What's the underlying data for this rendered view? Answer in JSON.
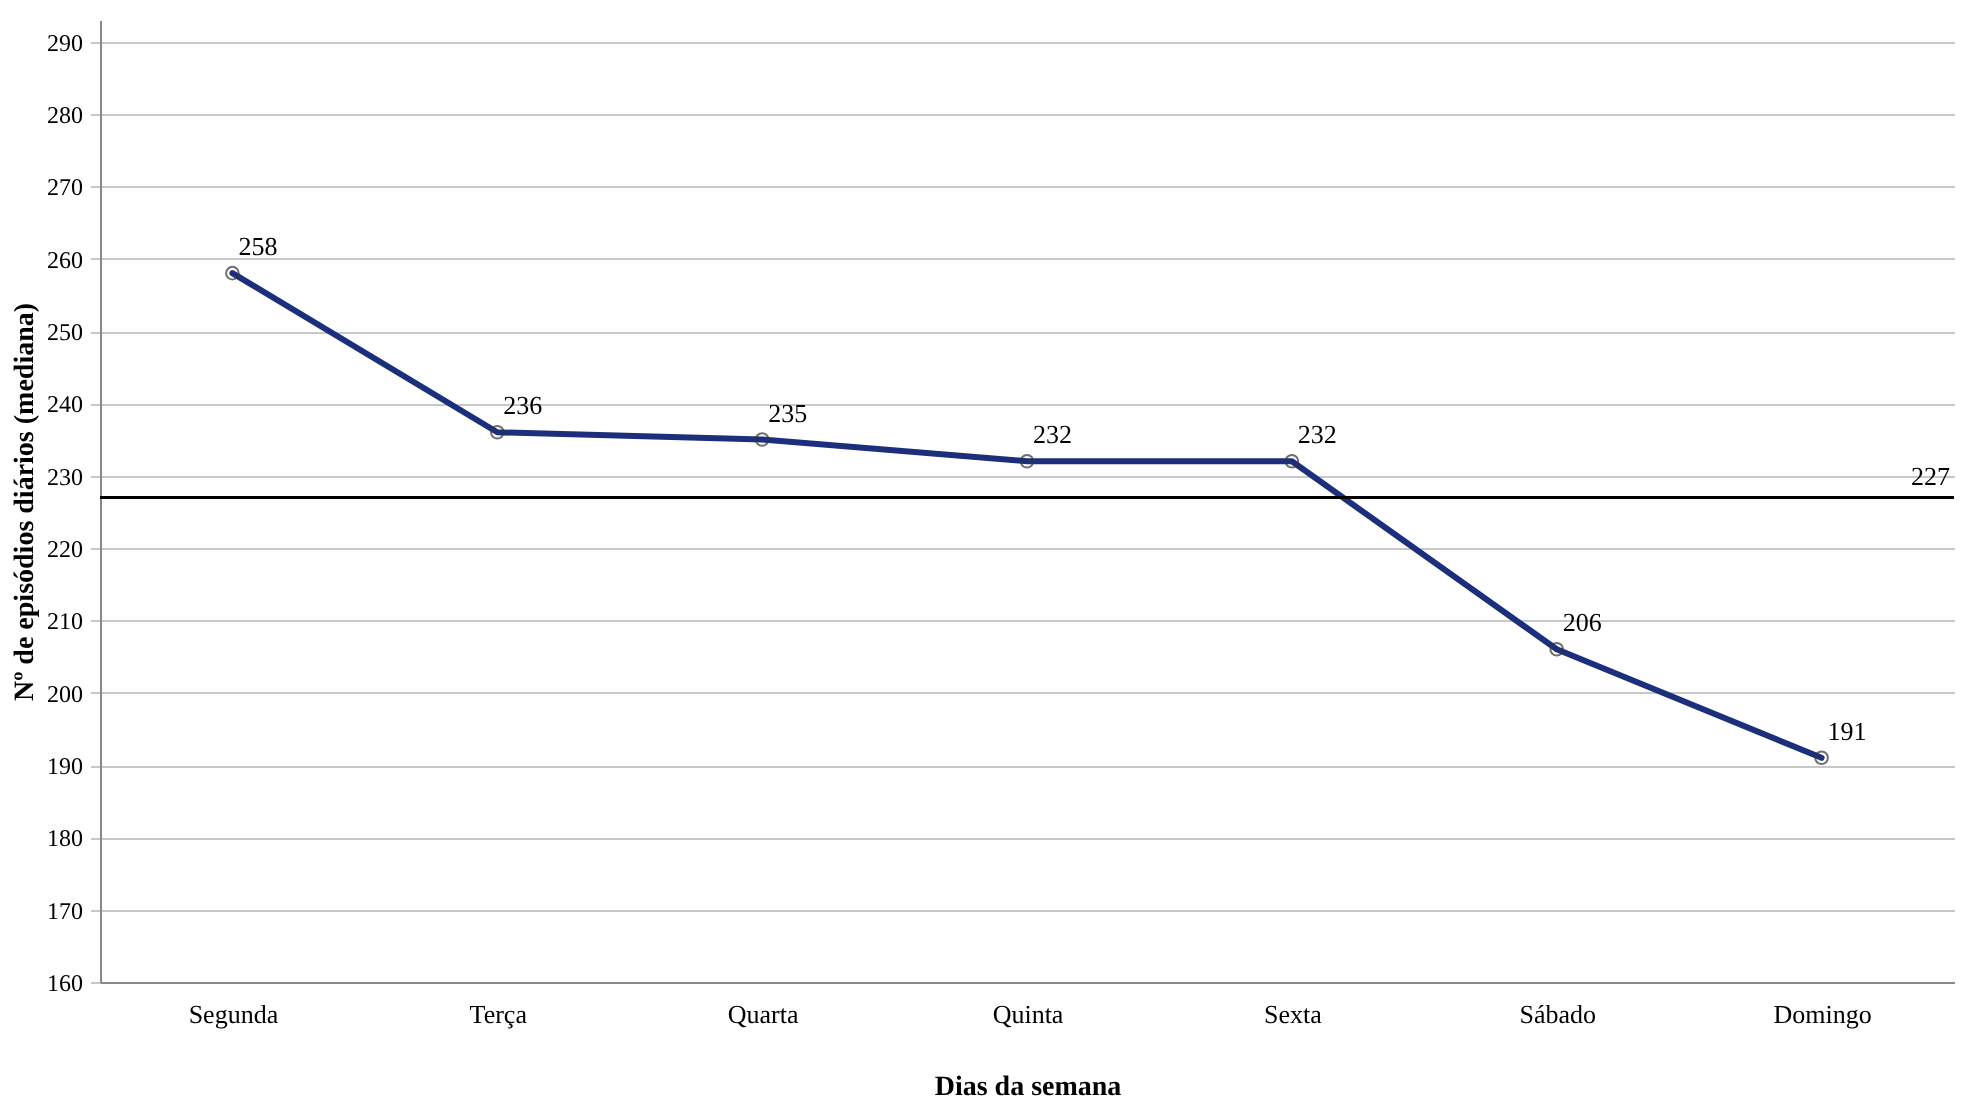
{
  "chart_data": {
    "type": "line",
    "xlabel": "Dias da semana",
    "ylabel": "Nº de episódios diários (mediana)",
    "categories": [
      "Segunda",
      "Terça",
      "Quarta",
      "Quinta",
      "Sexta",
      "Sábado",
      "Domingo"
    ],
    "series": [
      {
        "color": "#1b2f7c",
        "values": [
          258,
          236,
          235,
          232,
          232,
          206,
          191
        ]
      }
    ],
    "ylim": [
      160,
      293
    ],
    "yticks": [
      160,
      170,
      180,
      190,
      200,
      210,
      220,
      230,
      240,
      250,
      260,
      270,
      280,
      290
    ],
    "grid": "y",
    "marker": "circle",
    "data_labels": true,
    "ref_lines": [
      {
        "axis": "y",
        "value": 227,
        "label": "227",
        "color": "#000000"
      }
    ]
  }
}
